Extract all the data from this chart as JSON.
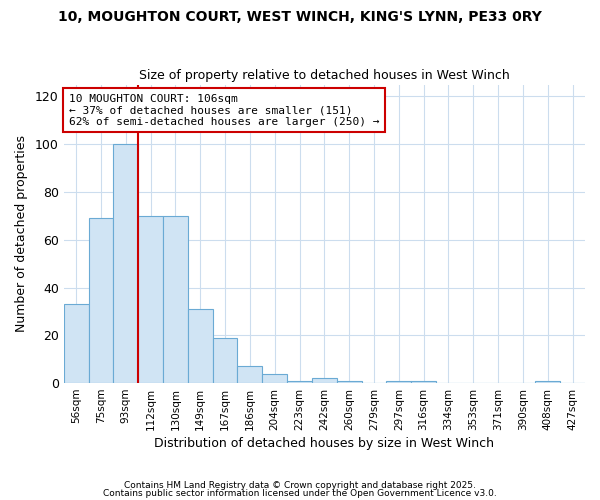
{
  "title_line1": "10, MOUGHTON COURT, WEST WINCH, KING'S LYNN, PE33 0RY",
  "title_line2": "Size of property relative to detached houses in West Winch",
  "xlabel": "Distribution of detached houses by size in West Winch",
  "ylabel": "Number of detached properties",
  "categories": [
    "56sqm",
    "75sqm",
    "93sqm",
    "112sqm",
    "130sqm",
    "149sqm",
    "167sqm",
    "186sqm",
    "204sqm",
    "223sqm",
    "242sqm",
    "260sqm",
    "279sqm",
    "297sqm",
    "316sqm",
    "334sqm",
    "353sqm",
    "371sqm",
    "390sqm",
    "408sqm",
    "427sqm"
  ],
  "values": [
    33,
    69,
    100,
    70,
    70,
    31,
    19,
    7,
    4,
    1,
    2,
    1,
    0,
    1,
    1,
    0,
    0,
    0,
    0,
    1,
    0
  ],
  "bar_color": "#d0e4f4",
  "bar_edge_color": "#6aaad4",
  "red_line_color": "#cc0000",
  "annotation_title": "10 MOUGHTON COURT: 106sqm",
  "annotation_line1": "← 37% of detached houses are smaller (151)",
  "annotation_line2": "62% of semi-detached houses are larger (250) →",
  "annotation_box_color": "#ffffff",
  "annotation_box_edge_color": "#cc0000",
  "footnote1": "Contains HM Land Registry data © Crown copyright and database right 2025.",
  "footnote2": "Contains public sector information licensed under the Open Government Licence v3.0.",
  "ylim": [
    0,
    125
  ],
  "yticks": [
    0,
    20,
    40,
    60,
    80,
    100,
    120
  ],
  "grid_color": "#ccddee",
  "bg_color": "#ffffff",
  "title_fontsize": 10,
  "subtitle_fontsize": 9
}
